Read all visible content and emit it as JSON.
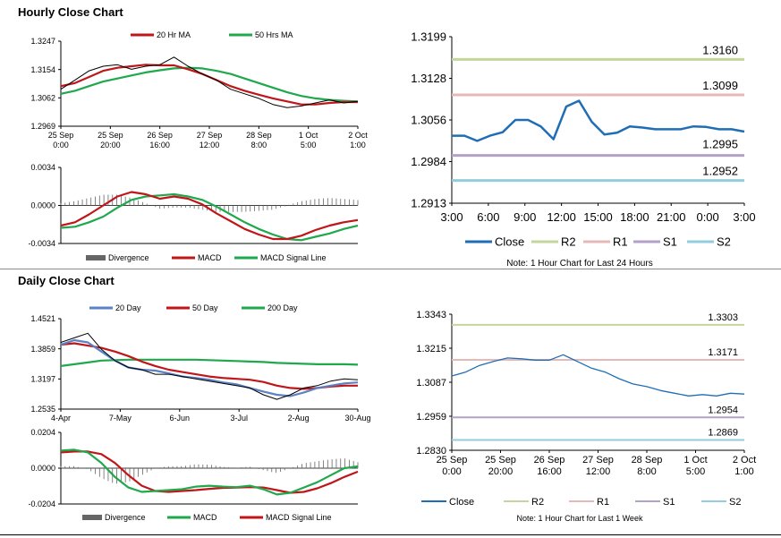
{
  "sections": {
    "hourly_title": "Hourly Close Chart",
    "daily_title": "Daily Close Chart"
  },
  "colors": {
    "ma20": "#c0161a",
    "ma50": "#1fa84c",
    "close": "#1f6eb5",
    "r2": "#c3d69b",
    "r1": "#e6b9b8",
    "s1": "#b3a2c7",
    "s2": "#93cddd",
    "blue_ma": "#5a82c4",
    "price": "#000000",
    "divergence": "#666666"
  },
  "chart_data": [
    {
      "id": "hourly_price",
      "type": "line",
      "title": "Hourly Close Chart",
      "legend": [
        "20 Hr MA",
        "50 Hrs MA"
      ],
      "y_ticks": [
        "1.3247",
        "1.3154",
        "1.3062",
        "1.2969"
      ],
      "ylim": [
        1.2969,
        1.3247
      ],
      "x_ticks": [
        [
          "25 Sep",
          "0:00"
        ],
        [
          "25 Sep",
          "20:00"
        ],
        [
          "26 Sep",
          "16:00"
        ],
        [
          "27 Sep",
          "12:00"
        ],
        [
          "28 Sep",
          "8:00"
        ],
        [
          "1 Oct",
          "5:00"
        ],
        [
          "2 Oct",
          "1:00"
        ]
      ],
      "series": [
        {
          "name": "Price",
          "values": [
            1.309,
            1.312,
            1.315,
            1.3165,
            1.317,
            1.3155,
            1.3165,
            1.317,
            1.3195,
            1.3165,
            1.314,
            1.312,
            1.309,
            1.3075,
            1.306,
            1.304,
            1.303,
            1.3035,
            1.3045,
            1.3055,
            1.3045,
            1.305
          ]
        },
        {
          "name": "20 Hr MA",
          "values": [
            1.31,
            1.311,
            1.313,
            1.315,
            1.316,
            1.3165,
            1.317,
            1.3168,
            1.3168,
            1.3155,
            1.314,
            1.312,
            1.31,
            1.3085,
            1.3072,
            1.306,
            1.305,
            1.304,
            1.304,
            1.3045,
            1.3048,
            1.3048
          ]
        },
        {
          "name": "50 Hrs MA",
          "values": [
            1.3075,
            1.3085,
            1.31,
            1.3115,
            1.3125,
            1.3135,
            1.3145,
            1.3152,
            1.3158,
            1.316,
            1.3158,
            1.315,
            1.314,
            1.3125,
            1.311,
            1.3095,
            1.308,
            1.3068,
            1.306,
            1.3055,
            1.3052,
            1.305
          ]
        }
      ]
    },
    {
      "id": "hourly_macd",
      "type": "line",
      "legend": [
        "Divergence",
        "MACD",
        "MACD Signal Line"
      ],
      "y_ticks": [
        "0.0034",
        "0.0000",
        "-0.0034"
      ],
      "ylim": [
        -0.0034,
        0.0034
      ],
      "series": [
        {
          "name": "MACD",
          "values": [
            -0.0018,
            -0.0015,
            -0.0008,
            0.0,
            0.0008,
            0.0012,
            0.001,
            0.0006,
            0.0008,
            0.0006,
            0.0001,
            -0.0007,
            -0.0014,
            -0.0021,
            -0.0026,
            -0.003,
            -0.003,
            -0.0027,
            -0.0022,
            -0.0018,
            -0.0015,
            -0.0013
          ]
        },
        {
          "name": "MACD Signal Line",
          "values": [
            -0.002,
            -0.0019,
            -0.0015,
            -0.001,
            -0.0002,
            0.0005,
            0.0008,
            0.0009,
            0.001,
            0.0008,
            0.0005,
            -0.0001,
            -0.0008,
            -0.0015,
            -0.0021,
            -0.0026,
            -0.003,
            -0.0031,
            -0.0028,
            -0.0025,
            -0.0021,
            -0.0018
          ]
        }
      ]
    },
    {
      "id": "hourly_levels",
      "type": "line",
      "legend": [
        "Close",
        "R2",
        "R1",
        "S1",
        "S2"
      ],
      "note": "Note: 1 Hour Chart for Last 24 Hours",
      "y_ticks": [
        "1.3199",
        "1.3128",
        "1.3056",
        "1.2984",
        "1.2913"
      ],
      "ylim": [
        1.2913,
        1.3199
      ],
      "x_ticks": [
        "3:00",
        "6:00",
        "9:00",
        "12:00",
        "15:00",
        "18:00",
        "21:00",
        "0:00",
        "3:00"
      ],
      "levels": {
        "R2": 1.316,
        "R1": 1.3099,
        "S1": 1.2995,
        "S2": 1.2952
      },
      "level_labels": [
        "1.3160",
        "1.3099",
        "1.2995",
        "1.2952"
      ],
      "series": [
        {
          "name": "Close",
          "values": [
            1.3029,
            1.3029,
            1.302,
            1.3029,
            1.3035,
            1.3056,
            1.3056,
            1.3045,
            1.3023,
            1.3079,
            1.3089,
            1.3053,
            1.3031,
            1.3034,
            1.3045,
            1.3043,
            1.304,
            1.304,
            1.304,
            1.3045,
            1.3044,
            1.304,
            1.304,
            1.3036
          ]
        }
      ]
    },
    {
      "id": "daily_price",
      "type": "line",
      "title": "Daily Close Chart",
      "legend": [
        "20 Day",
        "50 Day",
        "200 Day"
      ],
      "y_ticks": [
        "1.4521",
        "1.3859",
        "1.3197",
        "1.2535"
      ],
      "ylim": [
        1.2535,
        1.4521
      ],
      "x_ticks": [
        "4-Apr",
        "7-May",
        "6-Jun",
        "3-Jul",
        "2-Aug",
        "30-Aug"
      ],
      "series": [
        {
          "name": "Price",
          "values": [
            1.4,
            1.41,
            1.42,
            1.385,
            1.36,
            1.345,
            1.34,
            1.33,
            1.33,
            1.325,
            1.32,
            1.315,
            1.31,
            1.305,
            1.3,
            1.285,
            1.275,
            1.285,
            1.3,
            1.305,
            1.315,
            1.32,
            1.318
          ]
        },
        {
          "name": "20 Day",
          "values": [
            1.395,
            1.405,
            1.4,
            1.38,
            1.36,
            1.345,
            1.34,
            1.338,
            1.332,
            1.325,
            1.322,
            1.318,
            1.312,
            1.308,
            1.3,
            1.292,
            1.285,
            1.282,
            1.29,
            1.3,
            1.305,
            1.31,
            1.312
          ]
        },
        {
          "name": "50 Day",
          "values": [
            1.395,
            1.398,
            1.393,
            1.388,
            1.38,
            1.37,
            1.358,
            1.348,
            1.34,
            1.335,
            1.33,
            1.325,
            1.322,
            1.32,
            1.318,
            1.313,
            1.305,
            1.3,
            1.298,
            1.3,
            1.303,
            1.305,
            1.305
          ]
        },
        {
          "name": "200 Day",
          "values": [
            1.348,
            1.352,
            1.356,
            1.36,
            1.361,
            1.362,
            1.362,
            1.362,
            1.362,
            1.362,
            1.362,
            1.361,
            1.36,
            1.359,
            1.358,
            1.357,
            1.355,
            1.354,
            1.353,
            1.352,
            1.352,
            1.352,
            1.351
          ]
        }
      ]
    },
    {
      "id": "daily_macd",
      "type": "line",
      "legend": [
        "Divergence",
        "MACD",
        "MACD Signal Line"
      ],
      "y_ticks": [
        "0.0204",
        "0.0000",
        "-0.0204"
      ],
      "ylim": [
        -0.0204,
        0.0204
      ],
      "series": [
        {
          "name": "MACD",
          "values": [
            0.01,
            0.0105,
            0.009,
            0.003,
            -0.005,
            -0.011,
            -0.0135,
            -0.013,
            -0.0125,
            -0.012,
            -0.0105,
            -0.01,
            -0.0105,
            -0.0108,
            -0.01,
            -0.012,
            -0.015,
            -0.014,
            -0.011,
            -0.008,
            -0.004,
            0.0,
            0.001
          ]
        },
        {
          "name": "MACD Signal Line",
          "values": [
            0.009,
            0.0095,
            0.0095,
            0.008,
            0.003,
            -0.004,
            -0.01,
            -0.013,
            -0.0135,
            -0.013,
            -0.0125,
            -0.0118,
            -0.0112,
            -0.011,
            -0.0108,
            -0.011,
            -0.0125,
            -0.014,
            -0.0135,
            -0.0115,
            -0.0085,
            -0.005,
            -0.002
          ]
        }
      ]
    },
    {
      "id": "daily_levels",
      "type": "line",
      "legend": [
        "Close",
        "R2",
        "R1",
        "S1",
        "S2"
      ],
      "note": "Note: 1 Hour Chart for Last 1 Week",
      "y_ticks": [
        "1.3343",
        "1.3215",
        "1.3087",
        "1.2959",
        "1.2830"
      ],
      "ylim": [
        1.283,
        1.3343
      ],
      "x_ticks": [
        [
          "25 Sep",
          "0:00"
        ],
        [
          "25 Sep",
          "20:00"
        ],
        [
          "26 Sep",
          "16:00"
        ],
        [
          "27 Sep",
          "12:00"
        ],
        [
          "28 Sep",
          "8:00"
        ],
        [
          "1 Oct",
          "5:00"
        ],
        [
          "2 Oct",
          "1:00"
        ]
      ],
      "levels": {
        "R2": 1.3303,
        "R1": 1.3171,
        "S1": 1.2954,
        "S2": 1.2869
      },
      "level_labels": [
        "1.3303",
        "1.3171",
        "1.2954",
        "1.2869"
      ],
      "series": [
        {
          "name": "Close",
          "values": [
            1.311,
            1.3125,
            1.315,
            1.3165,
            1.3178,
            1.3175,
            1.317,
            1.317,
            1.319,
            1.3165,
            1.314,
            1.3125,
            1.31,
            1.308,
            1.307,
            1.3055,
            1.3045,
            1.3035,
            1.304,
            1.3035,
            1.3045,
            1.3042
          ]
        }
      ]
    }
  ]
}
